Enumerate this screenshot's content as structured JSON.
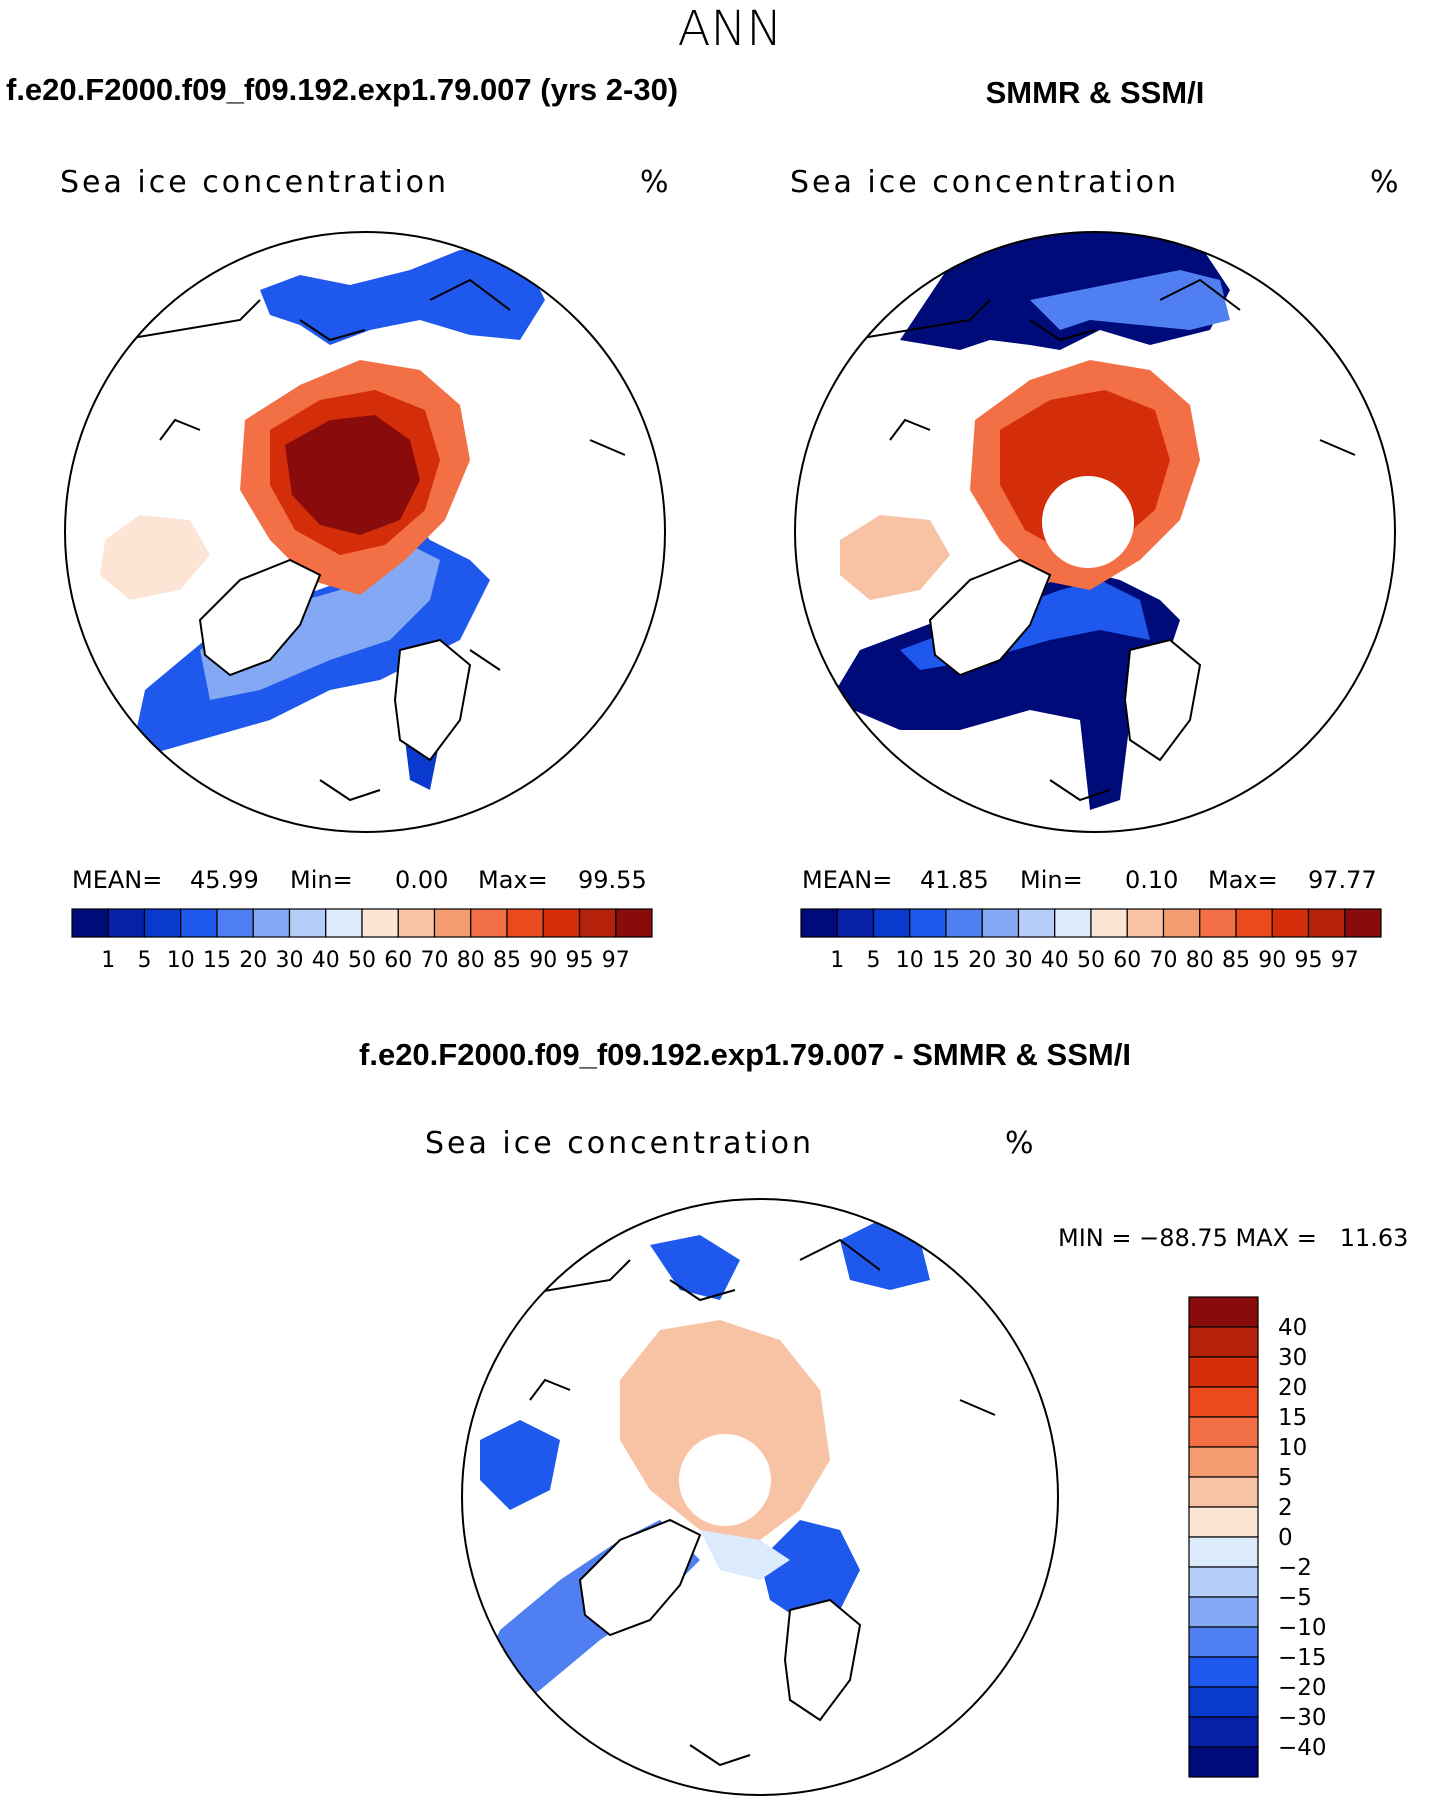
{
  "page_title": "ANN",
  "colors": {
    "blues": [
      "#000b7a",
      "#0620a8",
      "#0a3acd",
      "#1f58ec",
      "#4f7ff0",
      "#84a8f4",
      "#b4cdf9",
      "#dcebfb"
    ],
    "reds": [
      "#fde5d6",
      "#f8c3a4",
      "#f59b72",
      "#f36f45",
      "#ea4a1c",
      "#d42d0a",
      "#b5220c",
      "#8a0b0b"
    ],
    "land_outline": "#000000"
  },
  "chart_data": [
    {
      "id": "model",
      "type": "heatmap",
      "projection": "north-polar-stereographic",
      "title": "f.e20.F2000.f09_f09.192.exp1.79.007 (yrs 2-30)",
      "variable": "Sea ice concentration",
      "units": "%",
      "stats": {
        "mean_label": "MEAN=",
        "mean": "45.99",
        "min_label": "Min=",
        "min": "0.00",
        "max_label": "Max=",
        "max": "99.55"
      },
      "colorbar_levels": [
        "1",
        "5",
        "10",
        "15",
        "20",
        "30",
        "40",
        "50",
        "60",
        "70",
        "80",
        "85",
        "90",
        "95",
        "97"
      ],
      "pole_hole": false
    },
    {
      "id": "obs",
      "type": "heatmap",
      "projection": "north-polar-stereographic",
      "title": "SMMR & SSM/I",
      "variable": "Sea ice concentration",
      "units": "%",
      "stats": {
        "mean_label": "MEAN=",
        "mean": "41.85",
        "min_label": "Min=",
        "min": "0.10",
        "max_label": "Max=",
        "max": "97.77"
      },
      "colorbar_levels": [
        "1",
        "5",
        "10",
        "15",
        "20",
        "30",
        "40",
        "50",
        "60",
        "70",
        "80",
        "85",
        "90",
        "95",
        "97"
      ],
      "pole_hole": true
    },
    {
      "id": "diff",
      "type": "heatmap",
      "projection": "north-polar-stereographic",
      "title": "f.e20.F2000.f09_f09.192.exp1.79.007 - SMMR & SSM/I",
      "variable": "Sea ice concentration",
      "units": "%",
      "min_max_text": "MIN = −88.75 MAX =   11.63",
      "colorbar_levels": [
        "40",
        "30",
        "20",
        "15",
        "10",
        "5",
        "2",
        "0",
        "−2",
        "−5",
        "−10",
        "−15",
        "−20",
        "−30",
        "−40"
      ],
      "colorbar_orientation": "vertical",
      "pole_hole": true
    }
  ]
}
